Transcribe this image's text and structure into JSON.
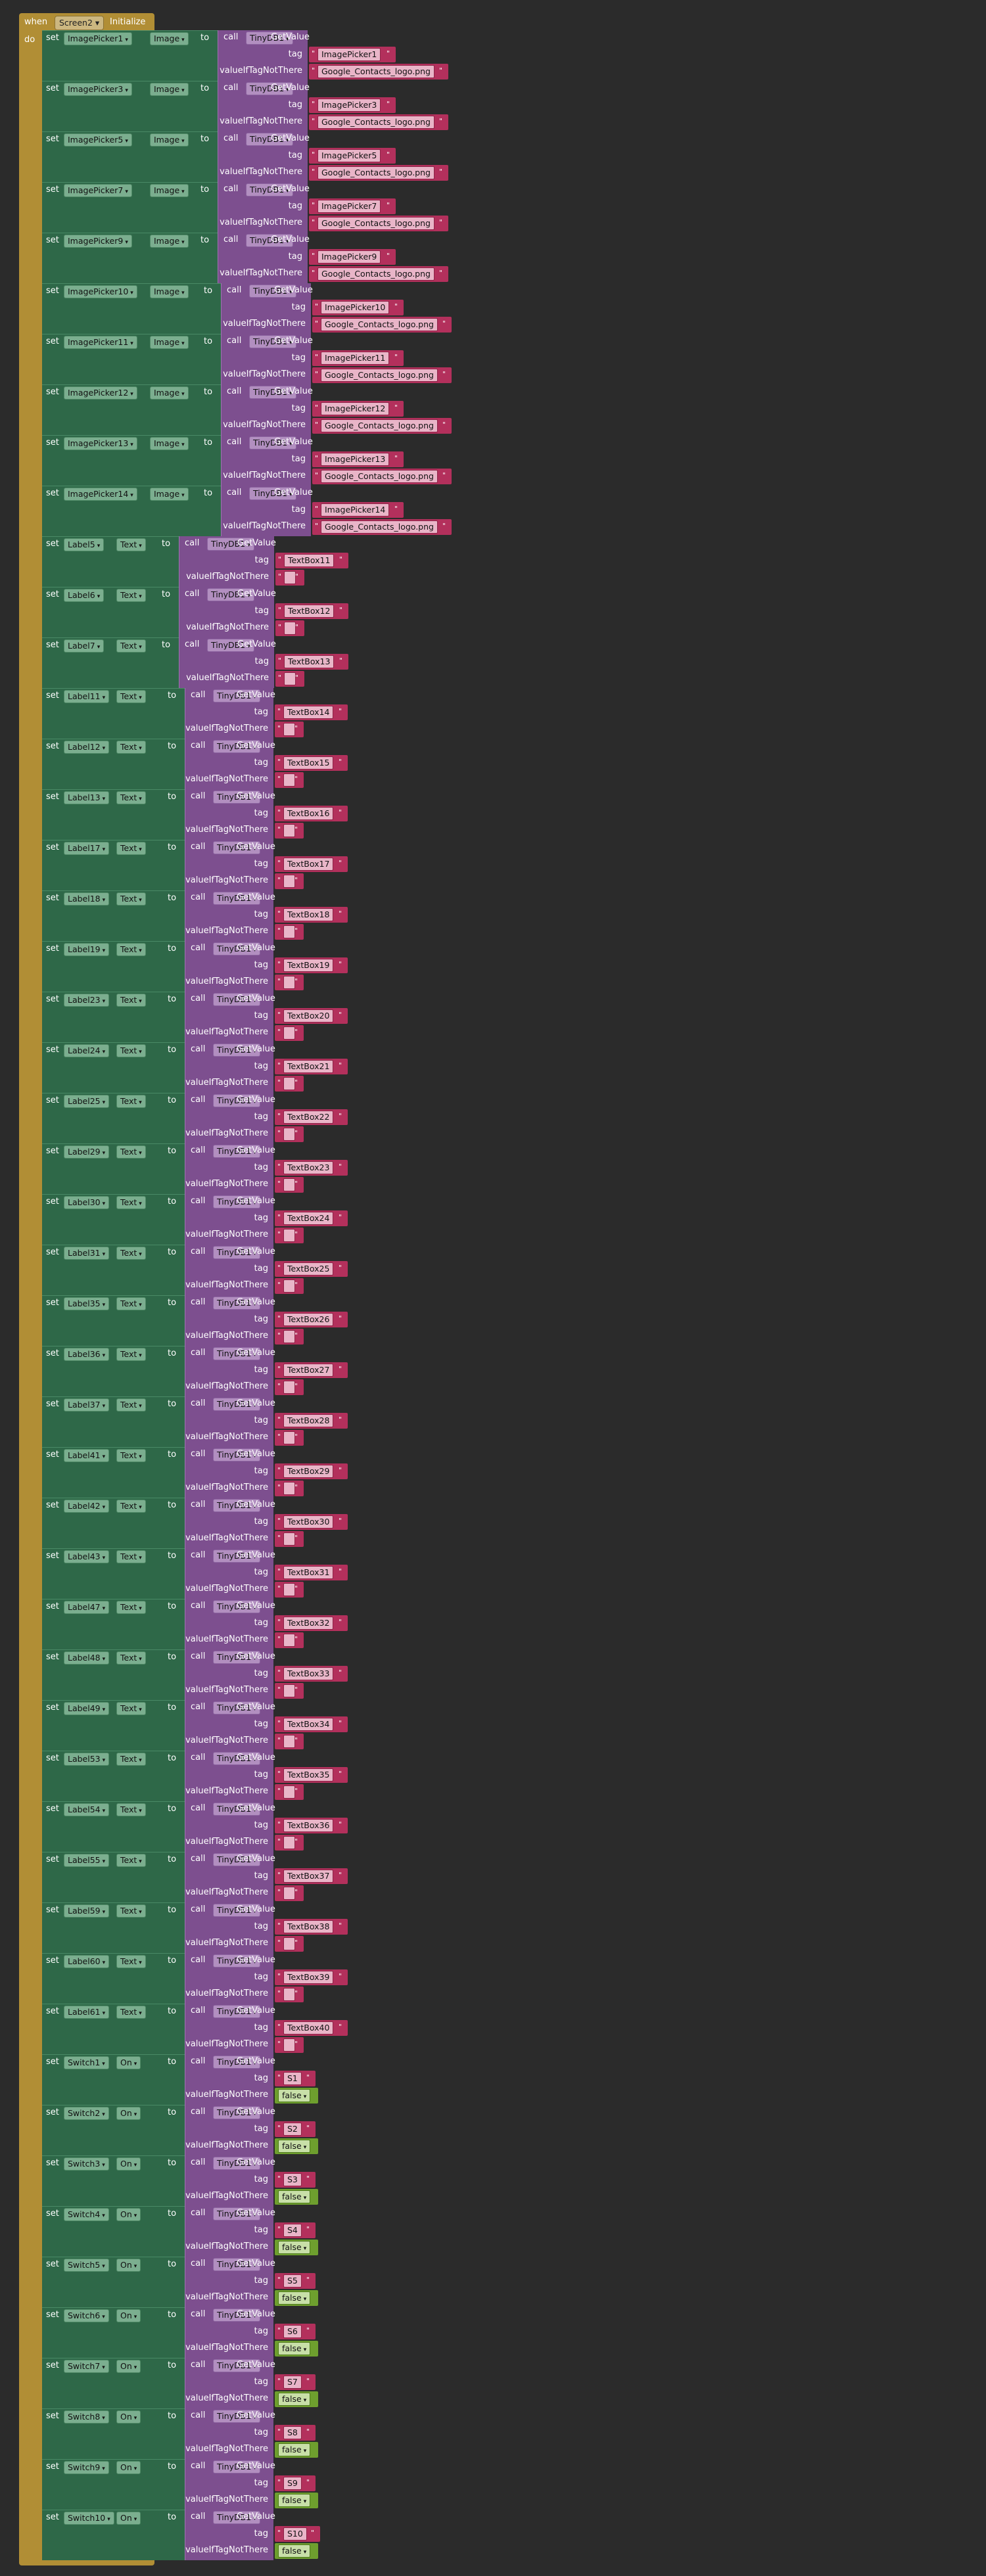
{
  "event": {
    "when": "when",
    "component": "Screen2",
    "event": "Initialize",
    "do": "do"
  },
  "kw": {
    "set": "set",
    "to": "to",
    "call": "call",
    "getvalue": "GetValue",
    "tag": "tag",
    "vint": "valueIfTagNotThere",
    "db": "TinyDB1",
    "quote": "\""
  },
  "blocks": [
    {
      "comp": "ImagePicker1",
      "prop": "Image",
      "tag": "ImagePicker1",
      "def": "Google_Contacts_logo.png",
      "t": "str"
    },
    {
      "comp": "ImagePicker3",
      "prop": "Image",
      "tag": "ImagePicker3",
      "def": "Google_Contacts_logo.png",
      "t": "str"
    },
    {
      "comp": "ImagePicker5",
      "prop": "Image",
      "tag": "ImagePicker5",
      "def": "Google_Contacts_logo.png",
      "t": "str"
    },
    {
      "comp": "ImagePicker7",
      "prop": "Image",
      "tag": "ImagePicker7",
      "def": "Google_Contacts_logo.png",
      "t": "str"
    },
    {
      "comp": "ImagePicker9",
      "prop": "Image",
      "tag": "ImagePicker9",
      "def": "Google_Contacts_logo.png",
      "t": "str"
    },
    {
      "comp": "ImagePicker10",
      "prop": "Image",
      "tag": "ImagePicker10",
      "def": "Google_Contacts_logo.png",
      "t": "str"
    },
    {
      "comp": "ImagePicker11",
      "prop": "Image",
      "tag": "ImagePicker11",
      "def": "Google_Contacts_logo.png",
      "t": "str"
    },
    {
      "comp": "ImagePicker12",
      "prop": "Image",
      "tag": "ImagePicker12",
      "def": "Google_Contacts_logo.png",
      "t": "str"
    },
    {
      "comp": "ImagePicker13",
      "prop": "Image",
      "tag": "ImagePicker13",
      "def": "Google_Contacts_logo.png",
      "t": "str"
    },
    {
      "comp": "ImagePicker14",
      "prop": "Image",
      "tag": "ImagePicker14",
      "def": "Google_Contacts_logo.png",
      "t": "str"
    },
    {
      "comp": "Label5",
      "prop": "Text",
      "tag": "TextBox11",
      "def": "",
      "t": "str"
    },
    {
      "comp": "Label6",
      "prop": "Text",
      "tag": "TextBox12",
      "def": "",
      "t": "str"
    },
    {
      "comp": "Label7",
      "prop": "Text",
      "tag": "TextBox13",
      "def": "",
      "t": "str"
    },
    {
      "comp": "Label11",
      "prop": "Text",
      "tag": "TextBox14",
      "def": "",
      "t": "str"
    },
    {
      "comp": "Label12",
      "prop": "Text",
      "tag": "TextBox15",
      "def": "",
      "t": "str"
    },
    {
      "comp": "Label13",
      "prop": "Text",
      "tag": "TextBox16",
      "def": "",
      "t": "str"
    },
    {
      "comp": "Label17",
      "prop": "Text",
      "tag": "TextBox17",
      "def": "",
      "t": "str"
    },
    {
      "comp": "Label18",
      "prop": "Text",
      "tag": "TextBox18",
      "def": "",
      "t": "str"
    },
    {
      "comp": "Label19",
      "prop": "Text",
      "tag": "TextBox19",
      "def": "",
      "t": "str"
    },
    {
      "comp": "Label23",
      "prop": "Text",
      "tag": "TextBox20",
      "def": "",
      "t": "str"
    },
    {
      "comp": "Label24",
      "prop": "Text",
      "tag": "TextBox21",
      "def": "",
      "t": "str"
    },
    {
      "comp": "Label25",
      "prop": "Text",
      "tag": "TextBox22",
      "def": "",
      "t": "str"
    },
    {
      "comp": "Label29",
      "prop": "Text",
      "tag": "TextBox23",
      "def": "",
      "t": "str"
    },
    {
      "comp": "Label30",
      "prop": "Text",
      "tag": "TextBox24",
      "def": "",
      "t": "str"
    },
    {
      "comp": "Label31",
      "prop": "Text",
      "tag": "TextBox25",
      "def": "",
      "t": "str"
    },
    {
      "comp": "Label35",
      "prop": "Text",
      "tag": "TextBox26",
      "def": "",
      "t": "str"
    },
    {
      "comp": "Label36",
      "prop": "Text",
      "tag": "TextBox27",
      "def": "",
      "t": "str"
    },
    {
      "comp": "Label37",
      "prop": "Text",
      "tag": "TextBox28",
      "def": "",
      "t": "str"
    },
    {
      "comp": "Label41",
      "prop": "Text",
      "tag": "TextBox29",
      "def": "",
      "t": "str"
    },
    {
      "comp": "Label42",
      "prop": "Text",
      "tag": "TextBox30",
      "def": "",
      "t": "str"
    },
    {
      "comp": "Label43",
      "prop": "Text",
      "tag": "TextBox31",
      "def": "",
      "t": "str"
    },
    {
      "comp": "Label47",
      "prop": "Text",
      "tag": "TextBox32",
      "def": "",
      "t": "str"
    },
    {
      "comp": "Label48",
      "prop": "Text",
      "tag": "TextBox33",
      "def": "",
      "t": "str"
    },
    {
      "comp": "Label49",
      "prop": "Text",
      "tag": "TextBox34",
      "def": "",
      "t": "str"
    },
    {
      "comp": "Label53",
      "prop": "Text",
      "tag": "TextBox35",
      "def": "",
      "t": "str"
    },
    {
      "comp": "Label54",
      "prop": "Text",
      "tag": "TextBox36",
      "def": "",
      "t": "str"
    },
    {
      "comp": "Label55",
      "prop": "Text",
      "tag": "TextBox37",
      "def": "",
      "t": "str"
    },
    {
      "comp": "Label59",
      "prop": "Text",
      "tag": "TextBox38",
      "def": "",
      "t": "str"
    },
    {
      "comp": "Label60",
      "prop": "Text",
      "tag": "TextBox39",
      "def": "",
      "t": "str"
    },
    {
      "comp": "Label61",
      "prop": "Text",
      "tag": "TextBox40",
      "def": "",
      "t": "str"
    },
    {
      "comp": "Switch1",
      "prop": "On",
      "tag": "S1",
      "def": "false",
      "t": "bool"
    },
    {
      "comp": "Switch2",
      "prop": "On",
      "tag": "S2",
      "def": "false",
      "t": "bool"
    },
    {
      "comp": "Switch3",
      "prop": "On",
      "tag": "S3",
      "def": "false",
      "t": "bool"
    },
    {
      "comp": "Switch4",
      "prop": "On",
      "tag": "S4",
      "def": "false",
      "t": "bool"
    },
    {
      "comp": "Switch5",
      "prop": "On",
      "tag": "S5",
      "def": "false",
      "t": "bool"
    },
    {
      "comp": "Switch6",
      "prop": "On",
      "tag": "S6",
      "def": "false",
      "t": "bool"
    },
    {
      "comp": "Switch7",
      "prop": "On",
      "tag": "S7",
      "def": "false",
      "t": "bool"
    },
    {
      "comp": "Switch8",
      "prop": "On",
      "tag": "S8",
      "def": "false",
      "t": "bool"
    },
    {
      "comp": "Switch9",
      "prop": "On",
      "tag": "S9",
      "def": "false",
      "t": "bool"
    },
    {
      "comp": "Switch10",
      "prop": "On",
      "tag": "S10",
      "def": "false",
      "t": "bool"
    }
  ],
  "colors": {
    "event": "#b18e35",
    "setter": "#2e6848",
    "call": "#7d4f8f",
    "text": "#b3305c",
    "logic": "#6e9f2e"
  }
}
